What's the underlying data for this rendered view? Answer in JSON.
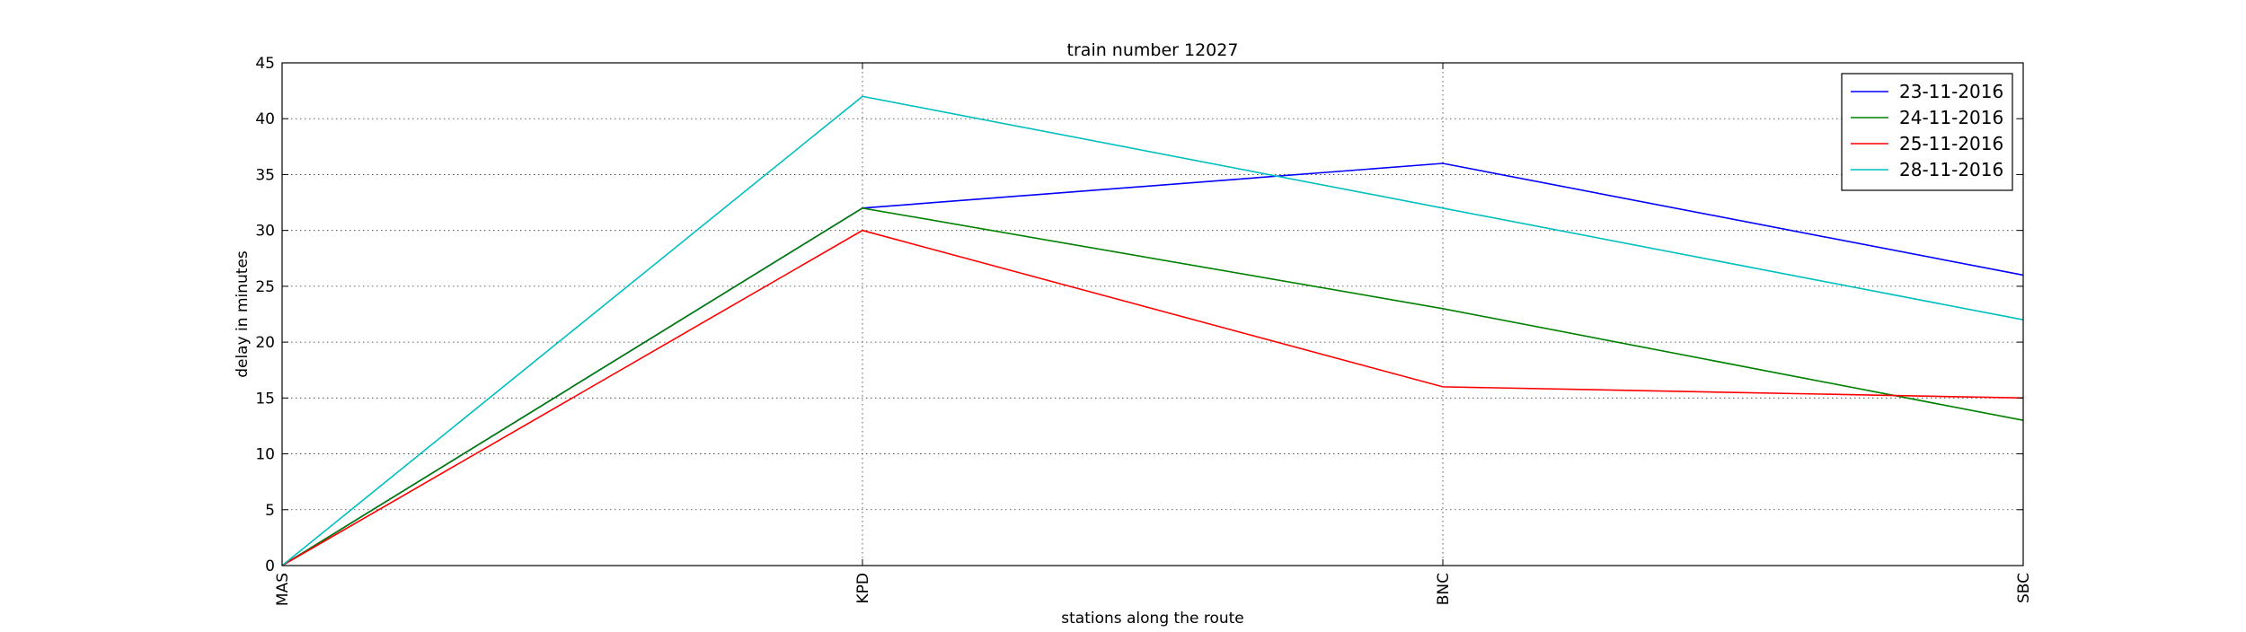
{
  "chart_data": {
    "type": "line",
    "title": "train number 12027",
    "xlabel": "stations along the route",
    "ylabel": "delay in minutes",
    "categories": [
      "MAS",
      "KPD",
      "BNC",
      "SBC"
    ],
    "ylim": [
      0,
      45
    ],
    "yticks": [
      0,
      5,
      10,
      15,
      20,
      25,
      30,
      35,
      40,
      45
    ],
    "grid": true,
    "legend_position": "top-right",
    "series": [
      {
        "name": "23-11-2016",
        "color": "#0000ff",
        "values": [
          0,
          32,
          36,
          26
        ]
      },
      {
        "name": "24-11-2016",
        "color": "#008000",
        "values": [
          0,
          32,
          23,
          13
        ]
      },
      {
        "name": "25-11-2016",
        "color": "#ff0000",
        "values": [
          0,
          30,
          16,
          15
        ]
      },
      {
        "name": "28-11-2016",
        "color": "#00bfbf",
        "values": [
          0,
          42,
          32,
          22
        ]
      }
    ]
  }
}
